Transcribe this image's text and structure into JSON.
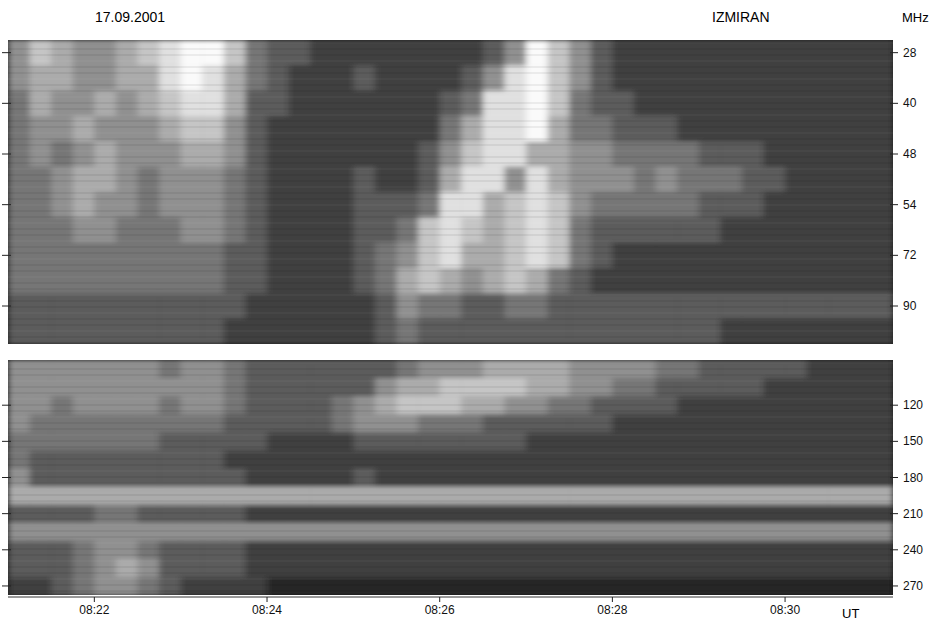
{
  "chart_data": {
    "type": "spectrogram",
    "title": "17.09.2001",
    "annotation": "IZMIRAN",
    "x_label": "UT",
    "y_label": "MHz",
    "xlim": [
      21,
      31.25
    ],
    "xticks": [
      {
        "value": 22,
        "label": "08:22"
      },
      {
        "value": 24,
        "label": "08:24"
      },
      {
        "value": 26,
        "label": "08:26"
      },
      {
        "value": 28,
        "label": "08:28"
      },
      {
        "value": 30,
        "label": "08:30"
      }
    ],
    "x_bins": [
      21,
      21.25,
      21.5,
      21.75,
      22,
      22.25,
      22.5,
      22.75,
      23,
      23.25,
      23.5,
      23.75,
      24,
      24.25,
      24.5,
      24.75,
      25,
      25.25,
      25.5,
      25.75,
      26,
      26.25,
      26.5,
      26.75,
      27,
      27.25,
      27.5,
      27.75,
      28,
      28.25,
      28.5,
      28.75,
      29,
      29.25,
      29.5,
      29.75,
      30,
      30.25,
      30.5,
      30.75,
      31,
      31.25
    ],
    "zlim": [
      0,
      9
    ],
    "panels": [
      {
        "y": [
          28,
          null,
          40,
          null,
          48,
          null,
          54,
          null,
          72,
          null,
          90,
          null
        ],
        "values": [
          [
            5,
            7,
            6,
            5,
            5,
            6,
            7,
            8,
            9,
            9,
            7,
            4,
            3,
            3,
            2,
            2,
            2,
            2,
            2,
            2,
            2,
            2,
            3,
            5,
            9,
            7,
            5,
            3,
            2,
            2,
            2,
            2,
            2,
            2,
            2,
            2,
            2,
            2,
            2,
            2,
            2
          ],
          [
            5,
            6,
            6,
            5,
            5,
            6,
            6,
            8,
            9,
            8,
            6,
            4,
            3,
            2,
            2,
            2,
            3,
            2,
            2,
            2,
            2,
            3,
            5,
            8,
            9,
            7,
            5,
            3,
            2,
            2,
            2,
            2,
            2,
            2,
            2,
            2,
            2,
            2,
            2,
            2,
            2
          ],
          [
            4,
            6,
            5,
            5,
            6,
            5,
            6,
            7,
            8,
            8,
            6,
            3,
            3,
            2,
            2,
            2,
            2,
            2,
            2,
            2,
            3,
            4,
            8,
            8,
            9,
            7,
            4,
            3,
            3,
            2,
            2,
            2,
            2,
            2,
            2,
            2,
            2,
            2,
            2,
            2,
            2
          ],
          [
            4,
            5,
            5,
            6,
            5,
            5,
            5,
            6,
            7,
            7,
            5,
            3,
            2,
            2,
            2,
            2,
            2,
            2,
            2,
            2,
            4,
            6,
            8,
            8,
            9,
            6,
            4,
            4,
            3,
            3,
            3,
            2,
            2,
            2,
            2,
            2,
            2,
            2,
            2,
            2,
            2
          ],
          [
            4,
            5,
            4,
            5,
            6,
            5,
            5,
            5,
            6,
            6,
            5,
            3,
            2,
            2,
            2,
            2,
            2,
            2,
            2,
            3,
            5,
            7,
            8,
            8,
            6,
            6,
            5,
            5,
            4,
            4,
            4,
            4,
            3,
            3,
            3,
            2,
            2,
            2,
            2,
            2,
            2
          ],
          [
            4,
            4,
            5,
            6,
            6,
            5,
            4,
            5,
            5,
            5,
            4,
            3,
            2,
            2,
            2,
            2,
            3,
            2,
            2,
            3,
            6,
            8,
            8,
            5,
            8,
            6,
            5,
            5,
            5,
            4,
            5,
            4,
            4,
            4,
            3,
            3,
            2,
            2,
            2,
            2,
            2
          ],
          [
            4,
            4,
            5,
            6,
            5,
            5,
            4,
            5,
            5,
            5,
            4,
            3,
            2,
            2,
            2,
            2,
            3,
            3,
            3,
            4,
            8,
            8,
            6,
            7,
            8,
            7,
            5,
            4,
            4,
            4,
            4,
            4,
            3,
            3,
            3,
            2,
            2,
            2,
            2,
            2,
            2
          ],
          [
            4,
            4,
            4,
            5,
            5,
            4,
            4,
            4,
            5,
            5,
            4,
            3,
            2,
            2,
            2,
            2,
            3,
            3,
            4,
            7,
            8,
            7,
            6,
            7,
            8,
            7,
            4,
            3,
            3,
            3,
            3,
            3,
            3,
            2,
            2,
            2,
            2,
            2,
            2,
            2,
            2
          ],
          [
            4,
            4,
            4,
            4,
            4,
            4,
            4,
            4,
            4,
            4,
            3,
            3,
            2,
            2,
            2,
            2,
            3,
            4,
            5,
            7,
            8,
            6,
            6,
            7,
            8,
            7,
            4,
            3,
            2,
            2,
            2,
            2,
            2,
            2,
            2,
            2,
            2,
            2,
            2,
            2,
            2
          ],
          [
            4,
            4,
            4,
            4,
            4,
            4,
            4,
            4,
            4,
            4,
            3,
            3,
            2,
            2,
            2,
            2,
            3,
            4,
            6,
            7,
            6,
            5,
            6,
            7,
            6,
            4,
            3,
            2,
            2,
            2,
            2,
            2,
            2,
            2,
            2,
            2,
            2,
            2,
            2,
            2,
            2
          ],
          [
            3,
            3,
            3,
            3,
            3,
            3,
            3,
            3,
            3,
            3,
            3,
            2,
            2,
            2,
            2,
            2,
            2,
            3,
            5,
            4,
            4,
            3,
            3,
            4,
            4,
            3,
            3,
            3,
            3,
            3,
            3,
            3,
            3,
            3,
            3,
            3,
            3,
            3,
            3,
            3,
            3
          ],
          [
            3,
            3,
            3,
            3,
            3,
            3,
            3,
            3,
            3,
            3,
            2,
            2,
            2,
            2,
            2,
            2,
            2,
            3,
            4,
            3,
            3,
            3,
            3,
            3,
            3,
            3,
            3,
            3,
            3,
            3,
            3,
            3,
            3,
            2,
            2,
            2,
            2,
            2,
            2,
            2,
            2
          ]
        ]
      },
      {
        "y": [
          null,
          null,
          120,
          null,
          150,
          null,
          180,
          null,
          210,
          null,
          240,
          null,
          270
        ],
        "values": [
          [
            5,
            5,
            5,
            5,
            5,
            5,
            5,
            4,
            5,
            5,
            4,
            3,
            3,
            3,
            3,
            3,
            3,
            3,
            4,
            5,
            5,
            5,
            6,
            6,
            6,
            6,
            5,
            5,
            5,
            5,
            4,
            4,
            3,
            3,
            3,
            3,
            3,
            2,
            2,
            2,
            2
          ],
          [
            5,
            5,
            5,
            5,
            5,
            5,
            5,
            5,
            5,
            5,
            4,
            3,
            3,
            3,
            3,
            3,
            3,
            5,
            6,
            6,
            7,
            7,
            7,
            7,
            6,
            6,
            5,
            5,
            4,
            4,
            3,
            3,
            3,
            3,
            3,
            2,
            2,
            2,
            2,
            2,
            2
          ],
          [
            5,
            5,
            4,
            5,
            5,
            5,
            5,
            4,
            5,
            5,
            4,
            3,
            3,
            3,
            3,
            4,
            5,
            6,
            7,
            7,
            7,
            6,
            6,
            5,
            5,
            4,
            4,
            3,
            3,
            3,
            3,
            2,
            2,
            2,
            2,
            2,
            2,
            2,
            2,
            2,
            2
          ],
          [
            5,
            4,
            4,
            4,
            4,
            4,
            4,
            4,
            4,
            4,
            3,
            3,
            3,
            3,
            3,
            4,
            5,
            5,
            5,
            4,
            4,
            4,
            3,
            3,
            3,
            3,
            3,
            3,
            2,
            2,
            2,
            2,
            2,
            2,
            2,
            2,
            2,
            2,
            2,
            2,
            2
          ],
          [
            4,
            4,
            4,
            4,
            4,
            4,
            4,
            3,
            3,
            3,
            3,
            3,
            2,
            2,
            2,
            2,
            3,
            3,
            3,
            3,
            3,
            3,
            3,
            3,
            2,
            2,
            2,
            2,
            2,
            2,
            2,
            2,
            2,
            2,
            2,
            2,
            2,
            2,
            2,
            2,
            2
          ],
          [
            4,
            3,
            3,
            3,
            3,
            3,
            3,
            3,
            3,
            3,
            2,
            2,
            2,
            2,
            2,
            2,
            2,
            2,
            2,
            2,
            2,
            2,
            2,
            2,
            2,
            2,
            2,
            2,
            2,
            2,
            2,
            2,
            2,
            2,
            2,
            2,
            2,
            2,
            2,
            2,
            2
          ],
          [
            5,
            3,
            3,
            3,
            3,
            3,
            3,
            3,
            3,
            3,
            3,
            2,
            2,
            2,
            2,
            2,
            3,
            2,
            2,
            2,
            2,
            2,
            2,
            2,
            2,
            2,
            2,
            2,
            2,
            2,
            2,
            2,
            2,
            2,
            2,
            2,
            2,
            2,
            2,
            2,
            2
          ],
          [
            6,
            6,
            6,
            6,
            6,
            6,
            6,
            6,
            6,
            6,
            6,
            6,
            6,
            6,
            6,
            6,
            6,
            6,
            6,
            6,
            6,
            6,
            6,
            6,
            6,
            6,
            6,
            6,
            6,
            6,
            6,
            6,
            6,
            6,
            6,
            6,
            6,
            6,
            6,
            6,
            6
          ],
          [
            3,
            3,
            3,
            3,
            4,
            4,
            3,
            3,
            3,
            3,
            3,
            2,
            2,
            2,
            2,
            2,
            2,
            2,
            2,
            2,
            2,
            2,
            2,
            2,
            2,
            2,
            2,
            2,
            2,
            2,
            2,
            2,
            2,
            2,
            2,
            2,
            2,
            2,
            2,
            2,
            2
          ],
          [
            5,
            5,
            5,
            5,
            5,
            5,
            5,
            5,
            5,
            5,
            5,
            5,
            5,
            5,
            5,
            5,
            5,
            5,
            5,
            5,
            5,
            5,
            5,
            5,
            5,
            5,
            5,
            5,
            5,
            5,
            5,
            5,
            5,
            5,
            5,
            5,
            5,
            5,
            5,
            5,
            5
          ],
          [
            3,
            3,
            3,
            4,
            5,
            5,
            4,
            3,
            3,
            3,
            3,
            2,
            2,
            2,
            2,
            2,
            2,
            2,
            2,
            2,
            2,
            2,
            2,
            2,
            2,
            2,
            2,
            2,
            2,
            2,
            2,
            2,
            2,
            2,
            2,
            2,
            2,
            2,
            2,
            2,
            2
          ],
          [
            3,
            3,
            3,
            4,
            5,
            6,
            5,
            3,
            3,
            3,
            3,
            2,
            2,
            2,
            2,
            2,
            2,
            2,
            2,
            2,
            2,
            2,
            2,
            2,
            2,
            2,
            2,
            2,
            2,
            2,
            2,
            2,
            2,
            2,
            2,
            2,
            2,
            2,
            2,
            2,
            2
          ],
          [
            2,
            2,
            3,
            4,
            5,
            5,
            4,
            3,
            2,
            2,
            2,
            2,
            1,
            1,
            1,
            1,
            1,
            1,
            1,
            1,
            1,
            1,
            1,
            1,
            1,
            1,
            1,
            1,
            1,
            1,
            1,
            1,
            1,
            1,
            1,
            1,
            1,
            1,
            1,
            1,
            1
          ]
        ]
      }
    ]
  }
}
